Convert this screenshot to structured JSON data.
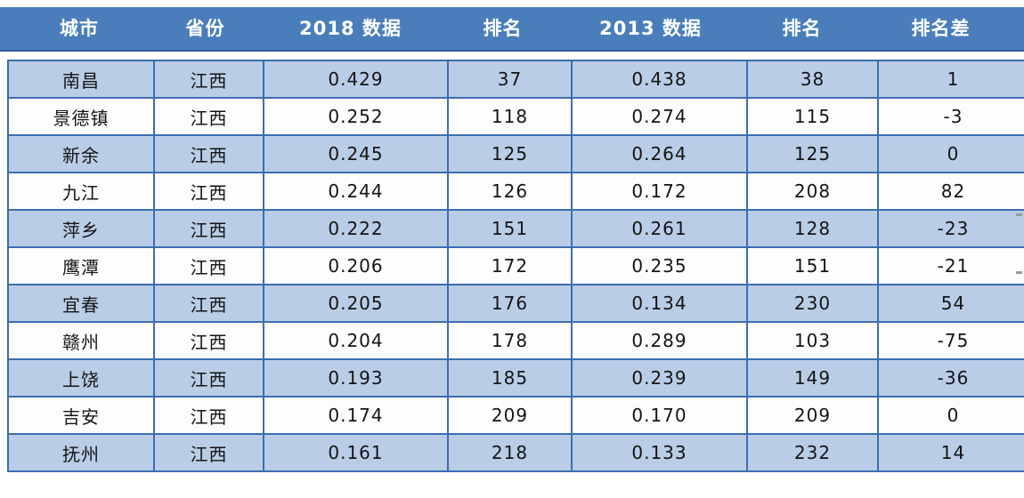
{
  "chart_data": {
    "type": "table",
    "columns": [
      "城市",
      "省份",
      "2018 数据",
      "排名",
      "2013 数据",
      "排名",
      "排名差"
    ],
    "rows": [
      [
        "南昌",
        "江西",
        "0.429",
        "37",
        "0.438",
        "38",
        "1"
      ],
      [
        "景德镇",
        "江西",
        "0.252",
        "118",
        "0.274",
        "115",
        "-3"
      ],
      [
        "新余",
        "江西",
        "0.245",
        "125",
        "0.264",
        "125",
        "0"
      ],
      [
        "九江",
        "江西",
        "0.244",
        "126",
        "0.172",
        "208",
        "82"
      ],
      [
        "萍乡",
        "江西",
        "0.222",
        "151",
        "0.261",
        "128",
        "-23"
      ],
      [
        "鹰潭",
        "江西",
        "0.206",
        "172",
        "0.235",
        "151",
        "-21"
      ],
      [
        "宜春",
        "江西",
        "0.205",
        "176",
        "0.134",
        "230",
        "54"
      ],
      [
        "赣州",
        "江西",
        "0.204",
        "178",
        "0.289",
        "103",
        "-75"
      ],
      [
        "上饶",
        "江西",
        "0.193",
        "185",
        "0.239",
        "149",
        "-36"
      ],
      [
        "吉安",
        "江西",
        "0.174",
        "209",
        "0.170",
        "209",
        "0"
      ],
      [
        "抚州",
        "江西",
        "0.161",
        "218",
        "0.133",
        "232",
        "14"
      ]
    ]
  },
  "colors": {
    "header_bg": "#4a7ebb",
    "header_edge": "#2e5c9c",
    "header_text": "#ffffff",
    "border": "#3c6db0",
    "row_bg": "#fdfdfe",
    "row_alt_bg": "#b9cde7",
    "body_text": "#141414"
  }
}
